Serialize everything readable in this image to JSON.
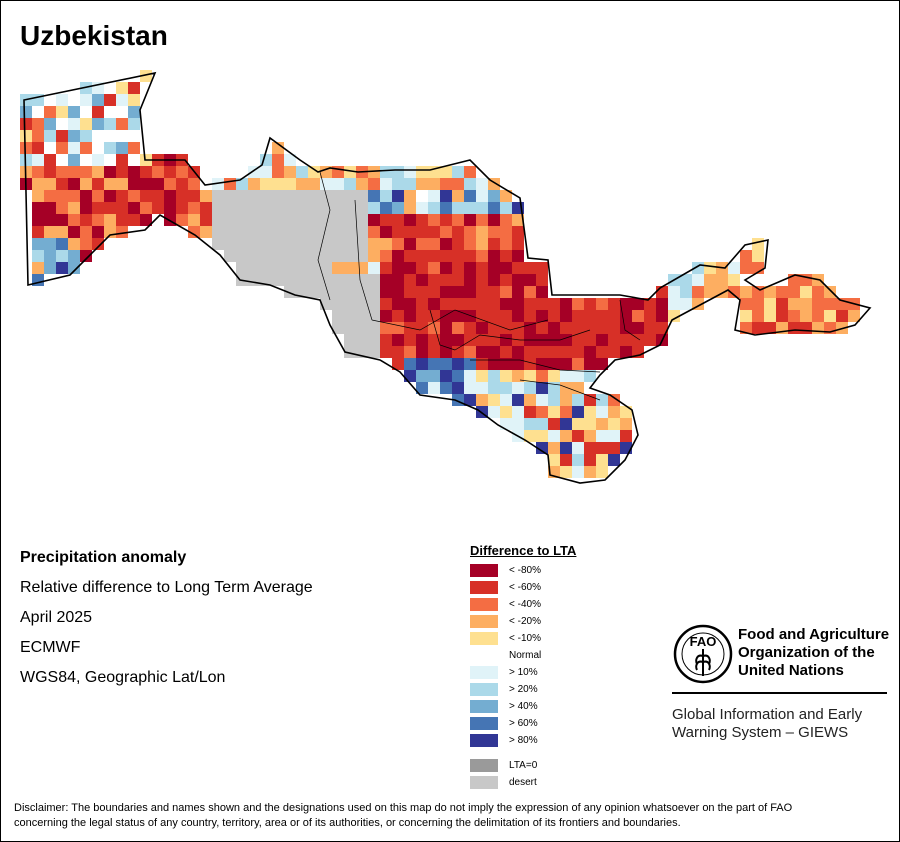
{
  "title": "Uzbekistan",
  "info": {
    "heading": "Precipitation anomaly",
    "line1": "Relative difference to Long Term Average",
    "line2": "April 2025",
    "line3": "ECMWF",
    "line4": "WGS84, Geographic Lat/Lon"
  },
  "legend": {
    "title": "Difference to LTA",
    "items": [
      {
        "label": "< -80%",
        "color": "#a50026"
      },
      {
        "label": "< -60%",
        "color": "#d73027"
      },
      {
        "label": "< -40%",
        "color": "#f46d43"
      },
      {
        "label": "< -20%",
        "color": "#fdae61"
      },
      {
        "label": "< -10%",
        "color": "#fee090"
      },
      {
        "label": "Normal",
        "color": "#ffffff"
      },
      {
        "label": "> 10%",
        "color": "#e0f3f8"
      },
      {
        "label": "> 20%",
        "color": "#abd9e9"
      },
      {
        "label": "> 40%",
        "color": "#74add1"
      },
      {
        "label": "> 60%",
        "color": "#4575b4"
      },
      {
        "label": "> 80%",
        "color": "#313695"
      }
    ],
    "extra": [
      {
        "label": "LTA=0",
        "color": "#9a9a9a"
      },
      {
        "label": "desert",
        "color": "#c8c8c8"
      }
    ]
  },
  "fao": {
    "org_line1": "Food and Agriculture",
    "org_line2": "Organization of the",
    "org_line3": "United Nations",
    "logo_text": "FAO",
    "giews_line1": "Global Information and Early",
    "giews_line2": "Warning System – GIEWS"
  },
  "disclaimer": {
    "line1": "Disclaimer: The boundaries and names shown and the designations used on this map do not imply the expression of any opinion whatsoever on the part of FAO",
    "line2": "concerning the legal status of any country, territory, area or of its authorities, or concerning the delimitation of its frontiers and boundaries."
  }
}
